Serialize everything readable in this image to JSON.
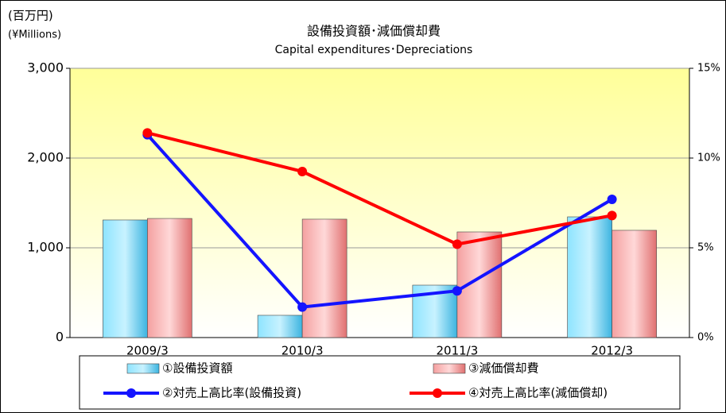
{
  "chart_data": {
    "type": "bar_line",
    "title": "設備投資額･減価償却費",
    "subtitle": "Capital expenditures･Depreciations",
    "y_label": "(百万円)",
    "y_label_en": "(¥Millions)",
    "categories": [
      "2009/3",
      "2010/3",
      "2011/3",
      "2012/3"
    ],
    "series": [
      {
        "name": "①設備投資額",
        "type": "bar",
        "color": "#5cc8ec",
        "values": [
          1310,
          248,
          584,
          1345
        ]
      },
      {
        "name": "③減価償却費",
        "type": "bar",
        "color": "#f08c8c",
        "values": [
          1327,
          1319,
          1177,
          1195
        ]
      },
      {
        "name": "②対売上高比率(設備投資)",
        "type": "line",
        "axis": "y2",
        "color": "#1414ff",
        "values": [
          11.3,
          1.7,
          2.6,
          7.7
        ]
      },
      {
        "name": "④対売上高比率(減価償却)",
        "type": "line",
        "axis": "y2",
        "color": "#ff0000",
        "values": [
          11.4,
          9.25,
          5.2,
          6.8
        ]
      }
    ],
    "ylim": [
      0,
      3000
    ],
    "yticks": [
      0,
      {
        "value": 1000,
        "label": "1,000"
      },
      {
        "value": 2000,
        "label": "2,000"
      },
      {
        "value": 3000,
        "label": "3,000"
      }
    ],
    "y2lim": [
      0,
      15
    ],
    "y2ticks": [
      {
        "value": 0,
        "label": "0%"
      },
      {
        "value": 5,
        "label": "5%"
      },
      {
        "value": 10,
        "label": "10%"
      },
      {
        "value": 15,
        "label": "15%"
      }
    ],
    "grid": true,
    "legend": "bottom"
  }
}
